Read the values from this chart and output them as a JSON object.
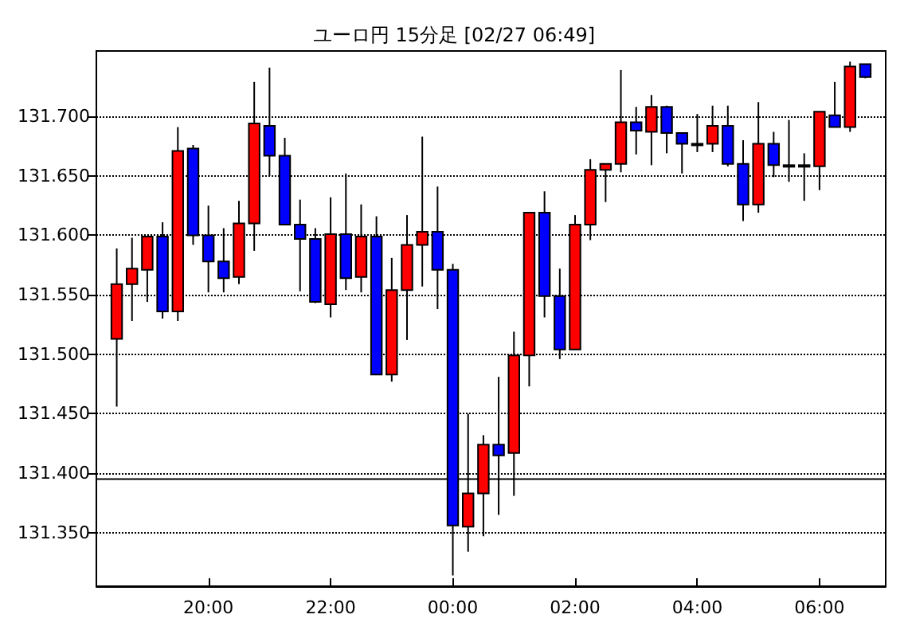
{
  "chart_data": {
    "type": "candlestick",
    "title": "ユーロ円 15分足 [02/27 06:49]",
    "x": [
      "--02-26T18:30",
      "--02-26T18:45",
      "--02-26T19:00",
      "--02-26T19:15",
      "--02-26T19:30",
      "--02-26T19:45",
      "--02-26T20:00",
      "--02-26T20:15",
      "--02-26T20:30",
      "--02-26T20:45",
      "--02-26T21:00",
      "--02-26T21:15",
      "--02-26T21:30",
      "--02-26T21:45",
      "--02-26T22:00",
      "--02-26T22:15",
      "--02-26T22:30",
      "--02-26T22:45",
      "--02-26T23:00",
      "--02-26T23:15",
      "--02-26T23:30",
      "--02-26T23:45",
      "--02-27T00:00",
      "--02-27T00:15",
      "--02-27T00:30",
      "--02-27T00:45",
      "--02-27T01:00",
      "--02-27T01:15",
      "--02-27T01:30",
      "--02-27T01:45",
      "--02-27T02:00",
      "--02-27T02:15",
      "--02-27T02:30",
      "--02-27T02:45",
      "--02-27T03:00",
      "--02-27T03:15",
      "--02-27T03:30",
      "--02-27T03:45",
      "--02-27T04:00",
      "--02-27T04:15",
      "--02-27T04:30",
      "--02-27T04:45",
      "--02-27T05:00",
      "--02-27T05:15",
      "--02-27T05:30",
      "--02-27T05:45",
      "--02-27T06:00",
      "--02-27T06:15",
      "--02-27T06:30",
      "--02-27T06:45"
    ],
    "ohlc": [
      [
        131.513,
        131.589,
        131.456,
        131.559
      ],
      [
        131.559,
        131.598,
        131.528,
        131.572
      ],
      [
        131.571,
        131.599,
        131.544,
        131.599
      ],
      [
        131.599,
        131.611,
        131.53,
        131.536
      ],
      [
        131.536,
        131.691,
        131.528,
        131.671
      ],
      [
        131.673,
        131.676,
        131.592,
        131.6
      ],
      [
        131.6,
        131.625,
        131.552,
        131.578
      ],
      [
        131.578,
        131.606,
        131.552,
        131.564
      ],
      [
        131.565,
        131.629,
        131.559,
        131.61
      ],
      [
        131.61,
        131.729,
        131.587,
        131.694
      ],
      [
        131.692,
        131.741,
        131.65,
        131.667
      ],
      [
        131.667,
        131.682,
        131.609,
        131.609
      ],
      [
        131.609,
        131.63,
        131.553,
        131.597
      ],
      [
        131.597,
        131.606,
        131.543,
        131.544
      ],
      [
        131.542,
        131.632,
        131.531,
        131.601
      ],
      [
        131.601,
        131.652,
        131.554,
        131.564
      ],
      [
        131.565,
        131.626,
        131.552,
        131.599
      ],
      [
        131.599,
        131.616,
        131.483,
        131.483
      ],
      [
        131.483,
        131.581,
        131.477,
        131.554
      ],
      [
        131.554,
        131.617,
        131.512,
        131.592
      ],
      [
        131.592,
        131.683,
        131.557,
        131.603
      ],
      [
        131.603,
        131.641,
        131.538,
        131.571
      ],
      [
        131.571,
        131.576,
        131.314,
        131.356
      ],
      [
        131.355,
        131.45,
        131.334,
        131.383
      ],
      [
        131.383,
        131.432,
        131.347,
        131.424
      ],
      [
        131.424,
        131.481,
        131.365,
        131.415
      ],
      [
        131.417,
        131.519,
        131.381,
        131.499
      ],
      [
        131.499,
        131.619,
        131.473,
        131.619
      ],
      [
        131.619,
        131.637,
        131.531,
        131.549
      ],
      [
        131.549,
        131.572,
        131.496,
        131.504
      ],
      [
        131.504,
        131.617,
        131.504,
        131.609
      ],
      [
        131.609,
        131.664,
        131.596,
        131.655
      ],
      [
        131.655,
        131.66,
        131.628,
        131.66
      ],
      [
        131.66,
        131.739,
        131.653,
        131.695
      ],
      [
        131.695,
        131.708,
        131.668,
        131.688
      ],
      [
        131.687,
        131.718,
        131.659,
        131.708
      ],
      [
        131.708,
        131.709,
        131.669,
        131.686
      ],
      [
        131.686,
        131.686,
        131.652,
        131.677
      ],
      [
        131.677,
        131.702,
        131.67,
        131.677
      ],
      [
        131.677,
        131.709,
        131.67,
        131.692
      ],
      [
        131.692,
        131.709,
        131.658,
        131.66
      ],
      [
        131.66,
        131.68,
        131.612,
        131.626
      ],
      [
        131.626,
        131.712,
        131.619,
        131.677
      ],
      [
        131.677,
        131.687,
        131.649,
        131.659
      ],
      [
        131.659,
        131.697,
        131.645,
        131.659
      ],
      [
        131.659,
        131.669,
        131.629,
        131.659
      ],
      [
        131.658,
        131.704,
        131.638,
        131.704
      ],
      [
        131.701,
        131.729,
        131.691,
        131.691
      ],
      [
        131.691,
        131.746,
        131.687,
        131.742
      ],
      [
        131.744,
        131.744,
        131.732,
        131.733
      ]
    ],
    "colors": [
      "#ff0000",
      "#ff0000",
      "#ff0000",
      "#0000ff",
      "#ff0000",
      "#0000ff",
      "#0000ff",
      "#0000ff",
      "#ff0000",
      "#ff0000",
      "#0000ff",
      "#0000ff",
      "#0000ff",
      "#0000ff",
      "#ff0000",
      "#0000ff",
      "#ff0000",
      "#0000ff",
      "#ff0000",
      "#ff0000",
      "#ff0000",
      "#0000ff",
      "#0000ff",
      "#ff0000",
      "#ff0000",
      "#0000ff",
      "#ff0000",
      "#ff0000",
      "#0000ff",
      "#0000ff",
      "#ff0000",
      "#ff0000",
      "#ff0000",
      "#ff0000",
      "#0000ff",
      "#ff0000",
      "#0000ff",
      "#0000ff",
      "#000000",
      "#ff0000",
      "#0000ff",
      "#0000ff",
      "#ff0000",
      "#0000ff",
      "#000000",
      "#000000",
      "#ff0000",
      "#0000ff",
      "#ff0000",
      "#0000ff"
    ],
    "xlim": [
      "--02-26T18:10",
      "--02-27T07:05"
    ],
    "xticks": [
      {
        "value": "--02-26T20:00",
        "label": "20:00"
      },
      {
        "value": "--02-26T22:00",
        "label": "22:00"
      },
      {
        "value": "--02-27T00:00",
        "label": "00:00"
      },
      {
        "value": "--02-27T02:00",
        "label": "02:00"
      },
      {
        "value": "--02-27T04:00",
        "label": "04:00"
      },
      {
        "value": "--02-27T06:00",
        "label": "06:00"
      }
    ],
    "ylim": [
      131.305,
      131.755
    ],
    "yticks": [
      {
        "value": 131.35,
        "label": "131.350"
      },
      {
        "value": 131.4,
        "label": "131.400"
      },
      {
        "value": 131.45,
        "label": "131.450"
      },
      {
        "value": 131.5,
        "label": "131.500"
      },
      {
        "value": 131.55,
        "label": "131.550"
      },
      {
        "value": 131.6,
        "label": "131.600"
      },
      {
        "value": 131.65,
        "label": "131.650"
      },
      {
        "value": 131.7,
        "label": "131.700"
      }
    ],
    "grid": "y",
    "ref_lines": [
      {
        "axis": "y",
        "value": 131.395,
        "color": "#000000"
      }
    ]
  }
}
